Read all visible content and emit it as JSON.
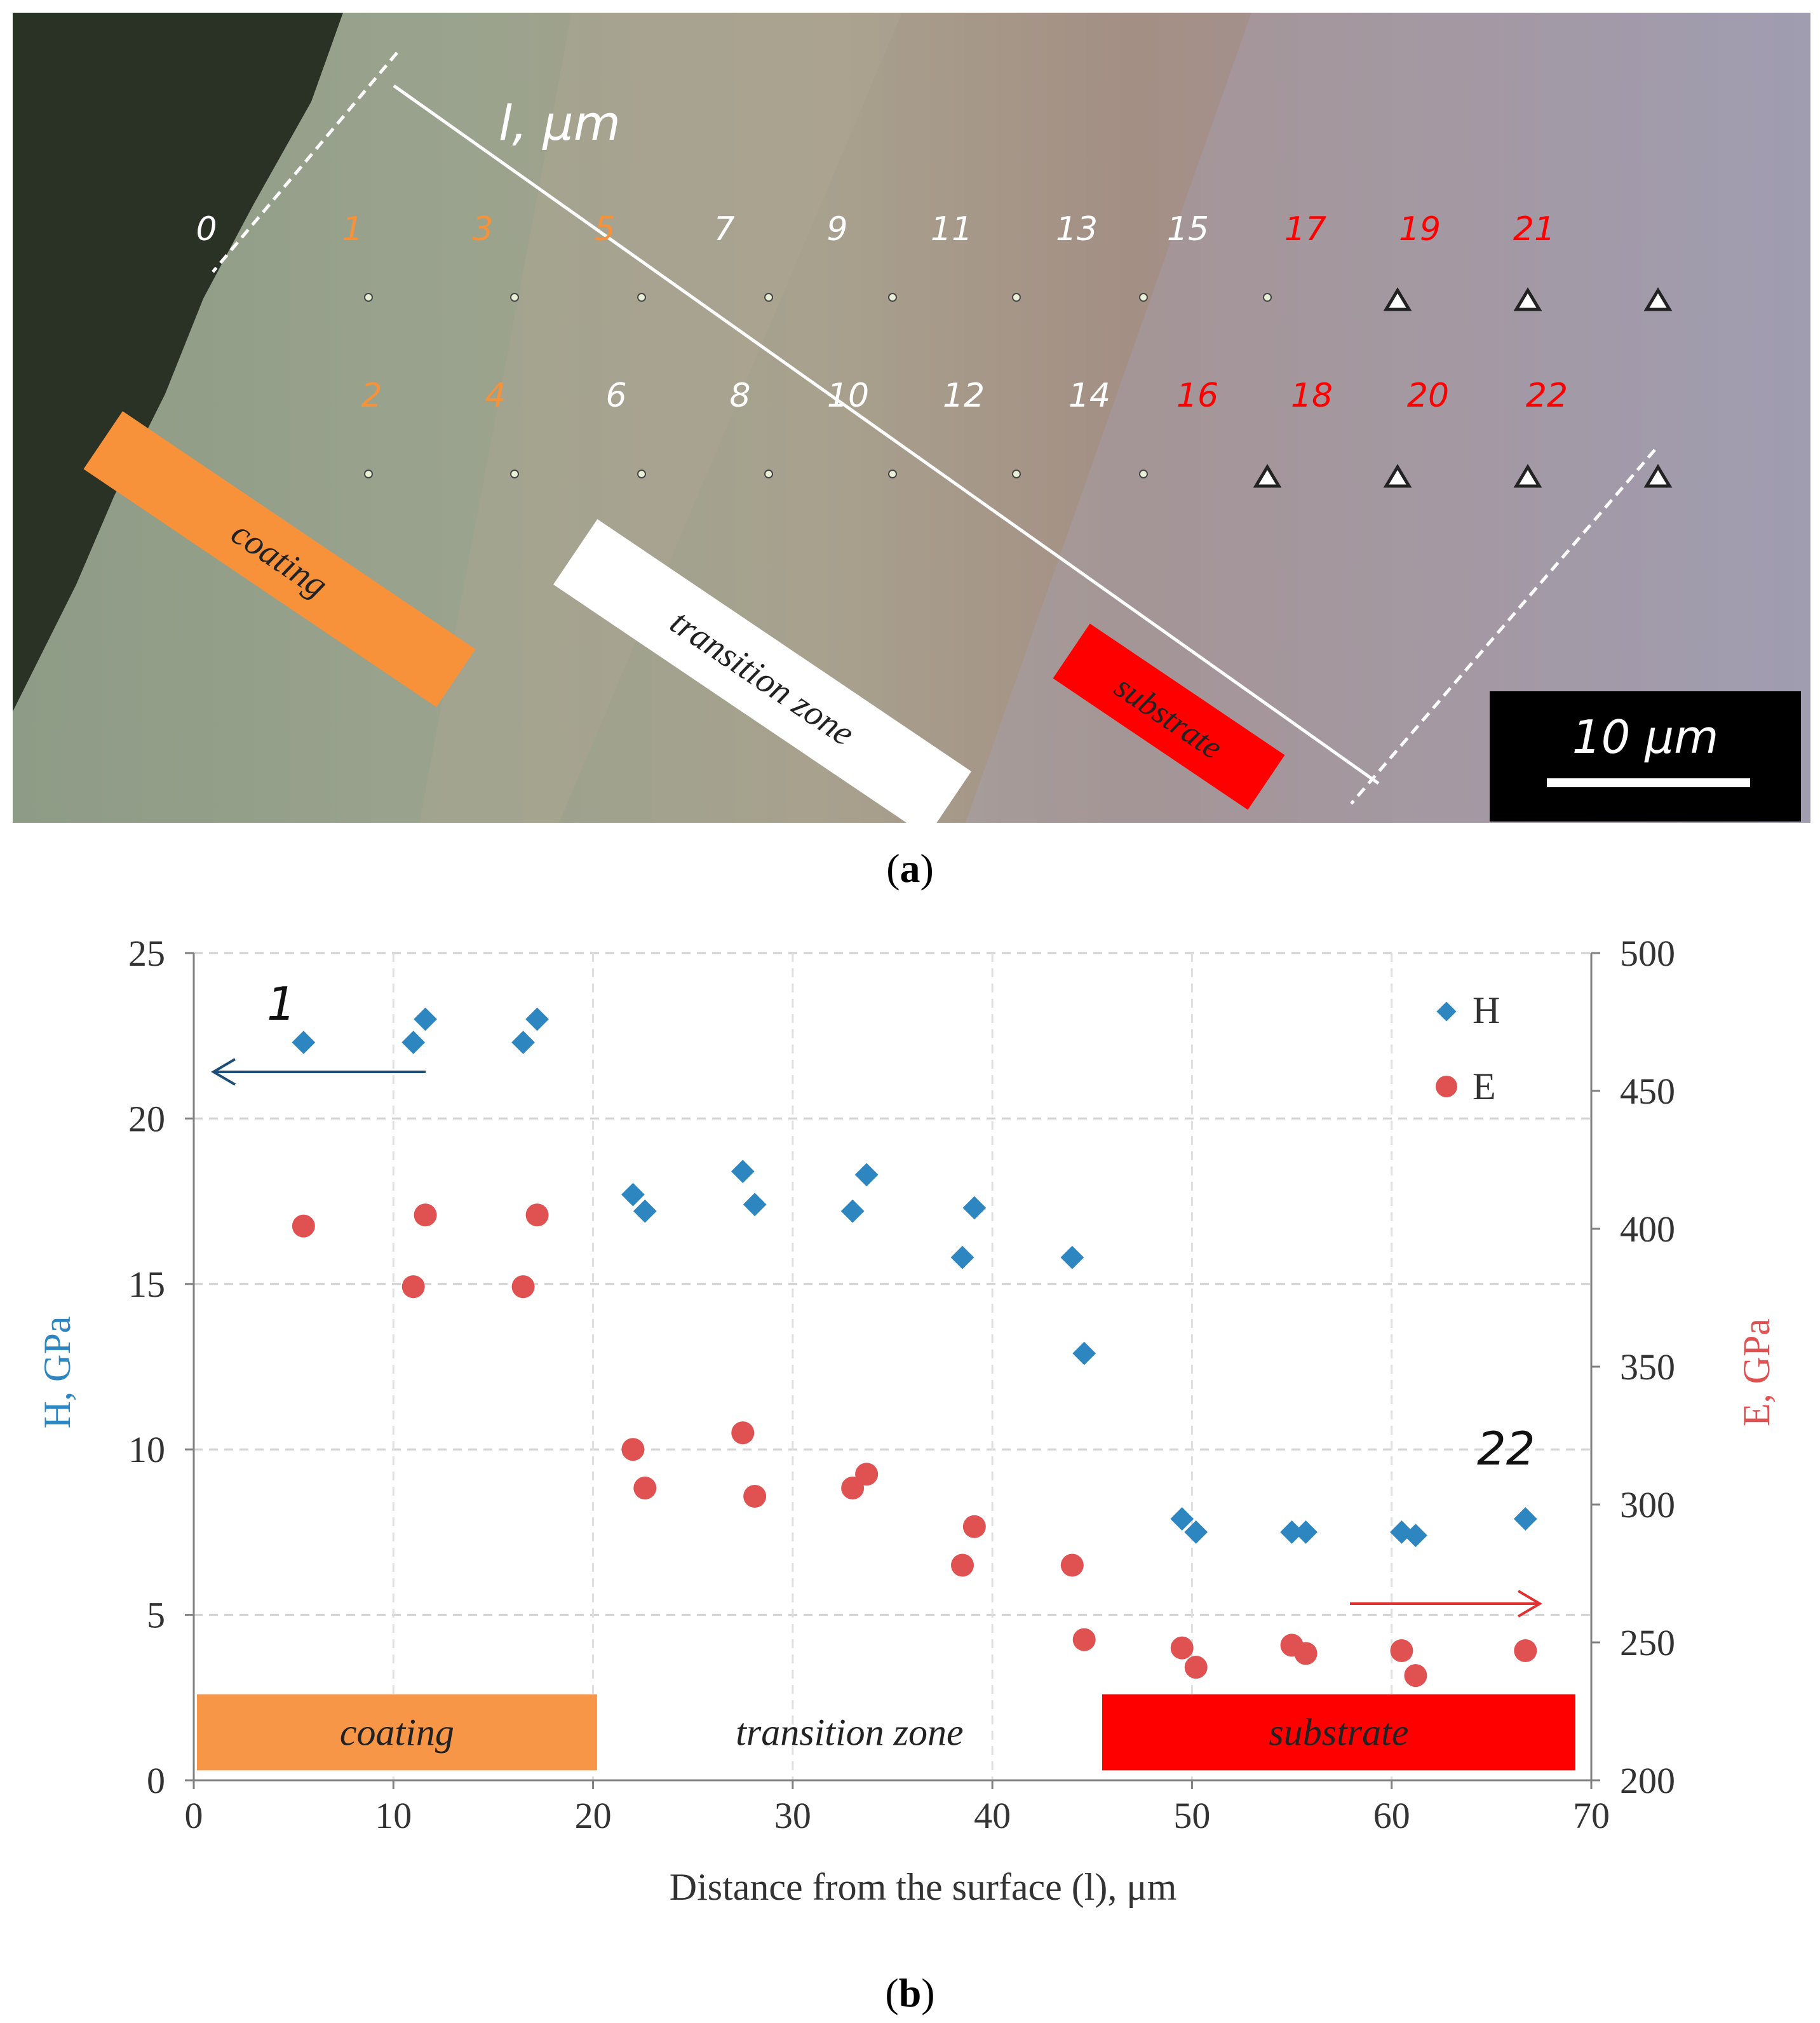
{
  "panel_a": {
    "caption_letter": "a",
    "axis_label": "l, μm",
    "scale_bar": "10 μm",
    "labels": {
      "coating": "coating",
      "transition": "transition zone",
      "substrate": "substrate"
    },
    "top_indents": [
      {
        "n": "0",
        "group": "surface"
      },
      {
        "n": "1",
        "group": "coating"
      },
      {
        "n": "3",
        "group": "coating"
      },
      {
        "n": "5",
        "group": "coating"
      },
      {
        "n": "7",
        "group": "transition"
      },
      {
        "n": "9",
        "group": "transition"
      },
      {
        "n": "11",
        "group": "transition"
      },
      {
        "n": "13",
        "group": "transition"
      },
      {
        "n": "15",
        "group": "transition"
      },
      {
        "n": "17",
        "group": "substrate"
      },
      {
        "n": "19",
        "group": "substrate"
      },
      {
        "n": "21",
        "group": "substrate"
      }
    ],
    "bottom_indents": [
      {
        "n": "2",
        "group": "coating"
      },
      {
        "n": "4",
        "group": "coating"
      },
      {
        "n": "6",
        "group": "transition"
      },
      {
        "n": "8",
        "group": "transition"
      },
      {
        "n": "10",
        "group": "transition"
      },
      {
        "n": "12",
        "group": "transition"
      },
      {
        "n": "14",
        "group": "transition"
      },
      {
        "n": "16",
        "group": "substrate"
      },
      {
        "n": "18",
        "group": "substrate"
      },
      {
        "n": "20",
        "group": "substrate"
      },
      {
        "n": "22",
        "group": "substrate"
      }
    ],
    "colors": {
      "coating": "#f7923a",
      "transition": "#ffffff",
      "substrate": "#ff0000",
      "surface": "#ffffff"
    }
  },
  "panel_b": {
    "caption_letter": "b"
  },
  "chart_data": {
    "type": "scatter",
    "xlabel": "Distance from the surface (l), μm",
    "ylabel": "H, GPa",
    "y2label": "E, GPa",
    "xlim": [
      0,
      70
    ],
    "ylim": [
      0,
      25
    ],
    "y2lim": [
      200,
      500
    ],
    "xticks": [
      0,
      10,
      20,
      30,
      40,
      50,
      60,
      70
    ],
    "yticks": [
      0,
      5,
      10,
      15,
      20,
      25
    ],
    "y2ticks": [
      200,
      250,
      300,
      350,
      400,
      450,
      500
    ],
    "grid": true,
    "legend_position": "top-right",
    "annotations": {
      "start": "1",
      "end": "22"
    },
    "zones": [
      {
        "label": "coating",
        "x_start": 0,
        "x_end": 20.2,
        "color": "#f79646"
      },
      {
        "label": "transition zone",
        "x_start": 20.2,
        "x_end": 45.5,
        "color": "#ffffff"
      },
      {
        "label": "substrate",
        "x_start": 45.5,
        "x_end": 69.2,
        "color": "#ff0000"
      }
    ],
    "series": [
      {
        "name": "H",
        "axis": "left",
        "marker": "diamond",
        "color": "#2e86c1",
        "points": [
          [
            5.5,
            22.3
          ],
          [
            11.0,
            22.3
          ],
          [
            11.6,
            23.0
          ],
          [
            16.5,
            22.3
          ],
          [
            17.2,
            23.0
          ],
          [
            22.0,
            17.7
          ],
          [
            22.6,
            17.2
          ],
          [
            27.5,
            18.4
          ],
          [
            28.1,
            17.4
          ],
          [
            33.0,
            17.2
          ],
          [
            33.7,
            18.3
          ],
          [
            38.5,
            15.8
          ],
          [
            39.1,
            17.3
          ],
          [
            44.0,
            15.8
          ],
          [
            44.6,
            12.9
          ],
          [
            49.5,
            7.9
          ],
          [
            50.2,
            7.5
          ],
          [
            55.0,
            7.5
          ],
          [
            55.7,
            7.5
          ],
          [
            60.5,
            7.5
          ],
          [
            61.2,
            7.4
          ],
          [
            66.7,
            7.9
          ]
        ]
      },
      {
        "name": "E",
        "axis": "right",
        "marker": "circle",
        "color": "#e05252",
        "points": [
          [
            5.5,
            401
          ],
          [
            11.0,
            379
          ],
          [
            11.6,
            405
          ],
          [
            16.5,
            379
          ],
          [
            17.2,
            405
          ],
          [
            22.0,
            320
          ],
          [
            22.6,
            306
          ],
          [
            27.5,
            326
          ],
          [
            28.1,
            303
          ],
          [
            33.0,
            306
          ],
          [
            33.7,
            311
          ],
          [
            38.5,
            278
          ],
          [
            39.1,
            292
          ],
          [
            44.0,
            278
          ],
          [
            44.6,
            251
          ],
          [
            49.5,
            248
          ],
          [
            50.2,
            241
          ],
          [
            55.0,
            249
          ],
          [
            55.7,
            246
          ],
          [
            60.5,
            247
          ],
          [
            61.2,
            238
          ],
          [
            66.7,
            247
          ]
        ]
      }
    ]
  }
}
